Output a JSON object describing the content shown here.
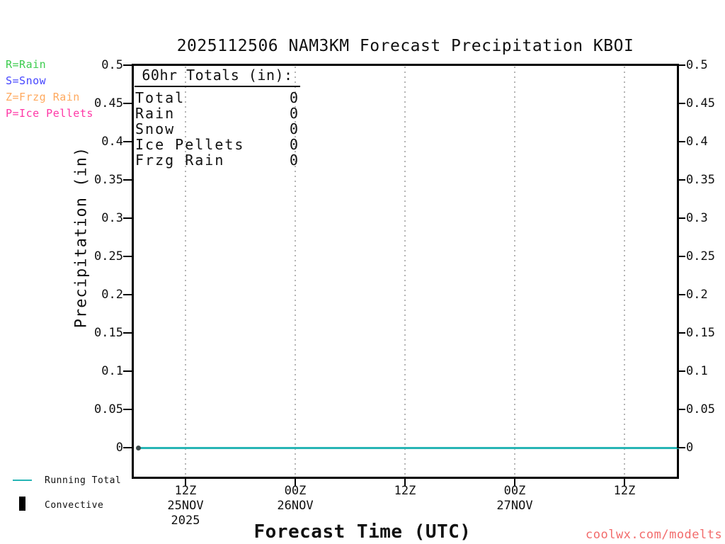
{
  "title": "2025112506 NAM3KM Forecast Precipitation KBOI",
  "watermark": "coolwx.com/modelts",
  "watermark_color": "#f26b6b",
  "type_legend": [
    {
      "code": "R=Rain",
      "color": "#3ccc4e"
    },
    {
      "code": "S=Snow",
      "color": "#4747ff"
    },
    {
      "code": "Z=Frzg Rain",
      "color": "#ffa95e"
    },
    {
      "code": "P=Ice Pellets",
      "color": "#ff37a6"
    }
  ],
  "totals_box": {
    "heading": "60hr Totals (in):",
    "rows": [
      {
        "label": "Total",
        "value": "0"
      },
      {
        "label": "Rain",
        "value": "0"
      },
      {
        "label": "Snow",
        "value": "0"
      },
      {
        "label": "Ice Pellets",
        "value": "0"
      },
      {
        "label": "Frzg Rain",
        "value": "0"
      }
    ]
  },
  "bottom_legend": [
    {
      "label": "Running Total",
      "swatch": "line",
      "color": "#27b5b5"
    },
    {
      "label": "Convective",
      "swatch": "bar",
      "color": "#000000"
    }
  ],
  "chart_data": {
    "type": "line",
    "title": "2025112506 NAM3KM Forecast Precipitation KBOI",
    "xlabel": "Forecast Time (UTC)",
    "ylabel": "Precipitation (in)",
    "ylim": [
      0,
      0.5
    ],
    "y_tick_labels": [
      "0.5",
      "0.45",
      "0.4",
      "0.35",
      "0.3",
      "0.25",
      "0.2",
      "0.15",
      "0.1",
      "0.05",
      "0"
    ],
    "x_tick_labels": [
      {
        "hour": "12Z",
        "date": "25NOV",
        "year": "2025"
      },
      {
        "hour": "00Z",
        "date": "26NOV",
        "year": ""
      },
      {
        "hour": "12Z",
        "date": "",
        "year": ""
      },
      {
        "hour": "00Z",
        "date": "27NOV",
        "year": ""
      },
      {
        "hour": "12Z",
        "date": "",
        "year": ""
      }
    ],
    "grid": "vertical-dotted",
    "gridline_color": "#b4b4b4",
    "series": [
      {
        "name": "Running Total",
        "color": "#27b5b5",
        "x": [
          "12Z 25NOV 2025",
          "00Z 26NOV",
          "12Z 26NOV",
          "00Z 27NOV",
          "12Z 27NOV"
        ],
        "values": [
          0,
          0,
          0,
          0,
          0
        ]
      },
      {
        "name": "Convective",
        "color": "#000000",
        "x": [
          "12Z 25NOV 2025",
          "00Z 26NOV",
          "12Z 26NOV",
          "00Z 27NOV",
          "12Z 27NOV"
        ],
        "values": [
          0,
          0,
          0,
          0,
          0
        ]
      }
    ]
  }
}
